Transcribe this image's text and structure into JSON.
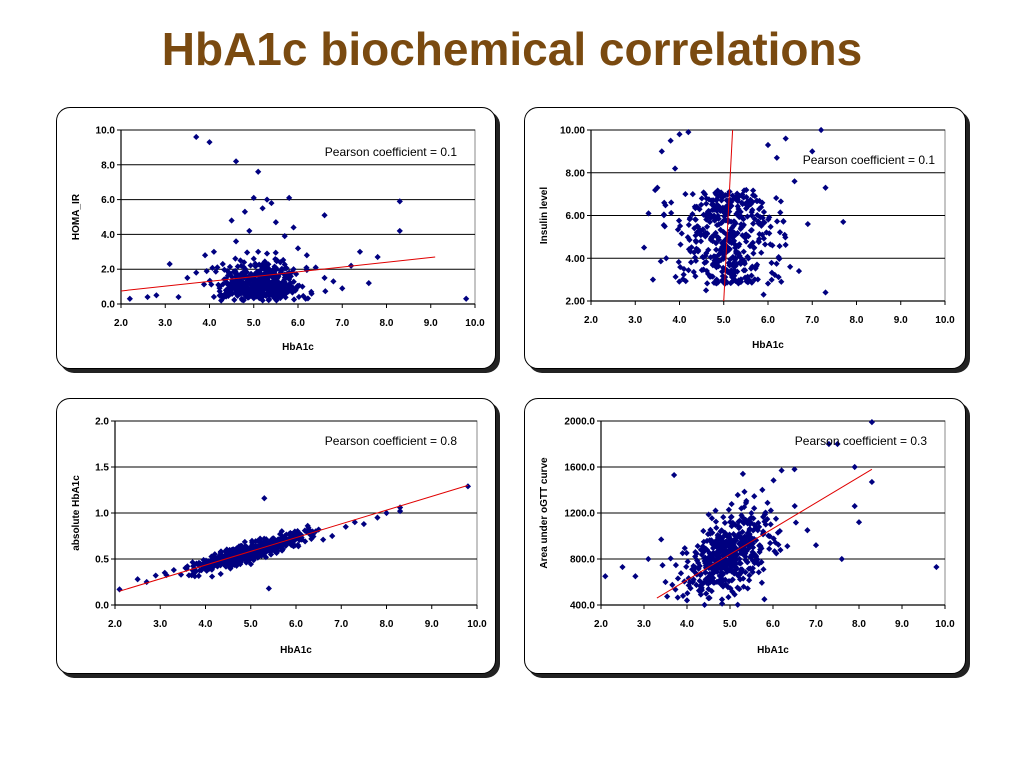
{
  "slide": {
    "title": "HbA1c biochemical correlations"
  },
  "colors": {
    "point": "#000080",
    "trendline": "#e00000",
    "title": "#7a4a10"
  },
  "chart_data": [
    {
      "id": "homa",
      "type": "scatter",
      "xlabel": "HbA1c",
      "ylabel": "HOMA_IR",
      "annotation": "Pearson coefficient = 0.1",
      "xlim": [
        2.0,
        10.0
      ],
      "ylim": [
        0.0,
        10.0
      ],
      "xticks": [
        "2.0",
        "3.0",
        "4.0",
        "5.0",
        "6.0",
        "7.0",
        "8.0",
        "9.0",
        "10.0"
      ],
      "yticks": [
        "0.0",
        "2.0",
        "4.0",
        "6.0",
        "8.0",
        "10.0"
      ],
      "grid": "horizontal",
      "trendline": [
        [
          2.0,
          0.75
        ],
        [
          9.1,
          2.7
        ]
      ],
      "points": [
        [
          3.7,
          9.6
        ],
        [
          4.0,
          9.3
        ],
        [
          4.6,
          8.2
        ],
        [
          5.1,
          7.6
        ],
        [
          5.3,
          6.0
        ],
        [
          5.8,
          6.1
        ],
        [
          6.6,
          5.1
        ],
        [
          8.3,
          5.9
        ],
        [
          8.3,
          4.2
        ],
        [
          2.2,
          0.3
        ],
        [
          2.6,
          0.4
        ],
        [
          2.8,
          0.5
        ],
        [
          3.1,
          2.3
        ],
        [
          3.3,
          0.4
        ],
        [
          3.5,
          1.5
        ],
        [
          3.7,
          1.8
        ],
        [
          3.9,
          2.8
        ],
        [
          4.1,
          3.0
        ],
        [
          4.3,
          2.3
        ],
        [
          4.5,
          4.8
        ],
        [
          4.6,
          3.6
        ],
        [
          4.8,
          5.3
        ],
        [
          4.9,
          4.2
        ],
        [
          5.0,
          6.1
        ],
        [
          5.2,
          5.5
        ],
        [
          5.4,
          5.8
        ],
        [
          5.5,
          4.7
        ],
        [
          5.7,
          3.9
        ],
        [
          5.9,
          4.4
        ],
        [
          6.0,
          3.2
        ],
        [
          6.2,
          2.8
        ],
        [
          6.4,
          2.1
        ],
        [
          6.6,
          1.5
        ],
        [
          6.8,
          1.3
        ],
        [
          7.0,
          0.9
        ],
        [
          7.2,
          2.2
        ],
        [
          7.4,
          3.0
        ],
        [
          7.6,
          1.2
        ],
        [
          7.8,
          2.7
        ],
        [
          9.8,
          0.3
        ],
        [
          5.0,
          2.6
        ],
        [
          5.1,
          3.0
        ],
        [
          4.7,
          2.5
        ],
        [
          5.3,
          2.9
        ],
        [
          4.4,
          1.9
        ],
        [
          5.6,
          2.4
        ],
        [
          5.9,
          2.0
        ],
        [
          4.2,
          1.1
        ],
        [
          6.1,
          1.0
        ],
        [
          6.3,
          0.7
        ]
      ],
      "cloud": {
        "n": 520,
        "mx": 5.15,
        "sx": 0.45,
        "my": 1.0,
        "sy": 0.8,
        "seed": 11
      }
    },
    {
      "id": "insulin",
      "type": "scatter",
      "xlabel": "HbA1c",
      "ylabel": "Insulin level",
      "annotation": "Pearson coefficient = 0.1",
      "xlim": [
        2.0,
        10.0
      ],
      "ylim": [
        2.0,
        10.0
      ],
      "xticks": [
        "2.0",
        "3.0",
        "4.0",
        "5.0",
        "6.0",
        "7.0",
        "8.0",
        "9.0",
        "10.0"
      ],
      "yticks": [
        "2.00",
        "4.00",
        "6.00",
        "8.00",
        "10.00"
      ],
      "grid": "horizontal",
      "trendline": [
        [
          5.0,
          2.0
        ],
        [
          5.2,
          10.0
        ]
      ],
      "points": [
        [
          3.2,
          4.5
        ],
        [
          3.3,
          6.1
        ],
        [
          3.5,
          7.3
        ],
        [
          3.6,
          9.0
        ],
        [
          3.8,
          9.5
        ],
        [
          3.9,
          8.2
        ],
        [
          4.0,
          9.8
        ],
        [
          4.2,
          9.9
        ],
        [
          4.3,
          7.0
        ],
        [
          4.4,
          5.5
        ],
        [
          6.0,
          9.3
        ],
        [
          6.2,
          8.7
        ],
        [
          6.4,
          9.6
        ],
        [
          6.6,
          7.6
        ],
        [
          6.9,
          5.6
        ],
        [
          7.2,
          10.0
        ],
        [
          7.3,
          7.3
        ],
        [
          7.3,
          2.4
        ],
        [
          7.7,
          5.7
        ],
        [
          7.0,
          9.0
        ],
        [
          6.5,
          3.6
        ],
        [
          6.3,
          2.9
        ],
        [
          6.7,
          3.4
        ],
        [
          3.7,
          4.0
        ],
        [
          4.1,
          3.5
        ],
        [
          4.6,
          2.5
        ],
        [
          5.9,
          2.3
        ],
        [
          6.1,
          4.6
        ],
        [
          3.4,
          3.0
        ]
      ],
      "cloud": {
        "n": 430,
        "mx": 5.05,
        "sx": 0.55,
        "my": 5.0,
        "sy": 2.2,
        "seed": 23
      }
    },
    {
      "id": "absolute",
      "type": "scatter",
      "xlabel": "HbA1c",
      "ylabel": "absolute HbA1c",
      "annotation": "Pearson coefficient = 0.8",
      "xlim": [
        2.0,
        10.0
      ],
      "ylim": [
        0.0,
        2.0
      ],
      "xticks": [
        "2.0",
        "3.0",
        "4.0",
        "5.0",
        "6.0",
        "7.0",
        "8.0",
        "9.0",
        "10.0"
      ],
      "yticks": [
        "0.0",
        "0.5",
        "1.0",
        "1.5",
        "2.0"
      ],
      "grid": "horizontal",
      "trendline": [
        [
          2.1,
          0.15
        ],
        [
          9.8,
          1.3
        ]
      ],
      "points": [
        [
          2.1,
          0.17
        ],
        [
          2.5,
          0.28
        ],
        [
          2.7,
          0.25
        ],
        [
          2.9,
          0.32
        ],
        [
          3.1,
          0.35
        ],
        [
          3.3,
          0.38
        ],
        [
          5.3,
          1.16
        ],
        [
          5.4,
          0.18
        ],
        [
          6.5,
          0.82
        ],
        [
          6.8,
          0.75
        ],
        [
          7.1,
          0.85
        ],
        [
          7.3,
          0.9
        ],
        [
          7.5,
          0.88
        ],
        [
          7.8,
          0.95
        ],
        [
          8.0,
          1.0
        ],
        [
          8.3,
          1.06
        ],
        [
          8.3,
          1.02
        ],
        [
          9.8,
          1.29
        ],
        [
          3.6,
          0.42
        ],
        [
          3.8,
          0.45
        ],
        [
          6.3,
          0.78
        ],
        [
          6.6,
          0.71
        ]
      ],
      "cloud": {
        "n": 520,
        "mx": 5.0,
        "sx": 0.6,
        "lineA": 0.15,
        "lineB": 0.1495,
        "sy": 0.05,
        "seed": 37
      }
    },
    {
      "id": "ogtt",
      "type": "scatter",
      "xlabel": "HbA1c",
      "ylabel": "Area under oGTT curve",
      "annotation": "Pearson coefficient = 0.3",
      "xlim": [
        2.0,
        10.0
      ],
      "ylim": [
        400.0,
        2000.0
      ],
      "xticks": [
        "2.0",
        "3.0",
        "4.0",
        "5.0",
        "6.0",
        "7.0",
        "8.0",
        "9.0",
        "10.0"
      ],
      "yticks": [
        "400.0",
        "800.0",
        "1200.0",
        "1600.0",
        "2000.0"
      ],
      "grid": "horizontal",
      "trendline": [
        [
          3.3,
          460.0
        ],
        [
          8.3,
          1580.0
        ]
      ],
      "points": [
        [
          2.1,
          650
        ],
        [
          2.5,
          730
        ],
        [
          2.8,
          650
        ],
        [
          3.1,
          800
        ],
        [
          3.4,
          970
        ],
        [
          3.5,
          600
        ],
        [
          3.7,
          1530
        ],
        [
          5.3,
          1540
        ],
        [
          6.2,
          1570
        ],
        [
          6.5,
          1580
        ],
        [
          7.3,
          1800
        ],
        [
          7.5,
          1800
        ],
        [
          7.9,
          1600
        ],
        [
          8.3,
          1990
        ],
        [
          8.3,
          1470
        ],
        [
          7.9,
          1260
        ],
        [
          8.0,
          1120
        ],
        [
          9.8,
          730
        ],
        [
          7.6,
          800
        ],
        [
          7.0,
          920
        ],
        [
          6.8,
          1050
        ],
        [
          4.0,
          440
        ],
        [
          4.5,
          460
        ],
        [
          5.8,
          450
        ]
      ],
      "cloud": {
        "n": 520,
        "mx": 5.0,
        "sx": 0.55,
        "my": 830,
        "sy": 180,
        "slope": 180,
        "seed": 53
      }
    }
  ]
}
